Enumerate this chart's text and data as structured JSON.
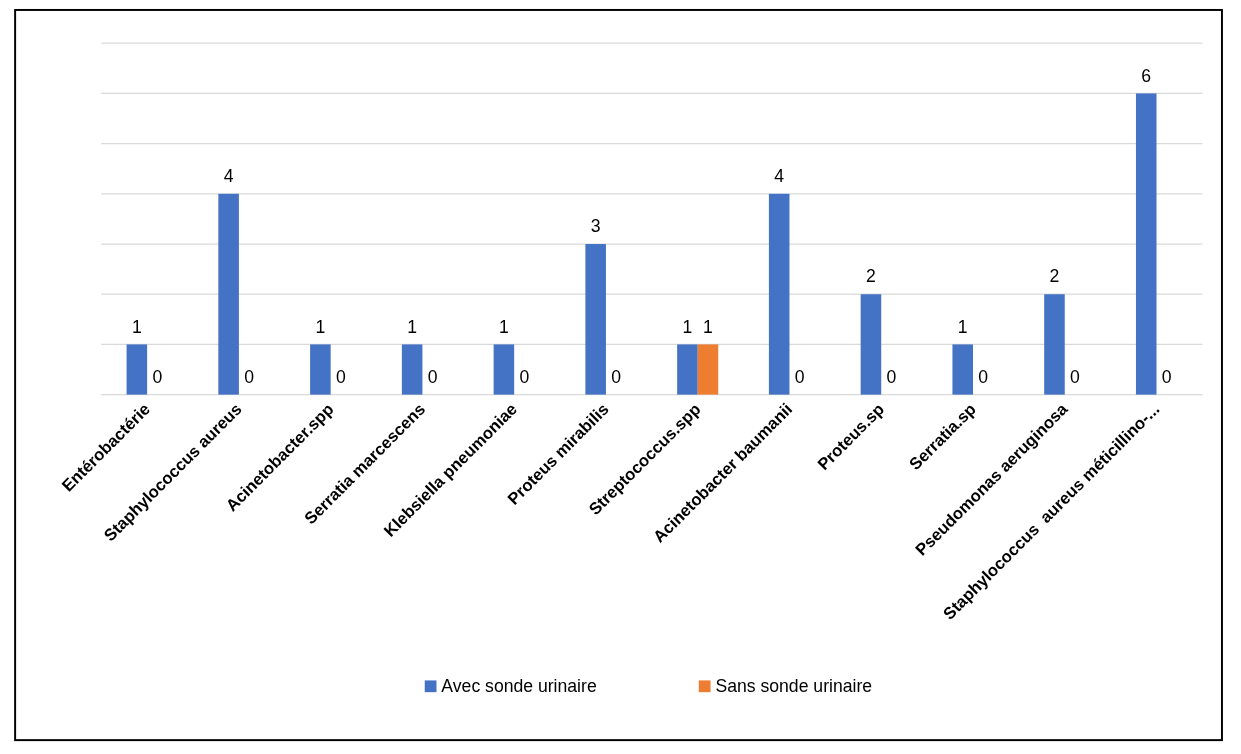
{
  "chart_data": {
    "type": "bar",
    "categories": [
      "Entérobactérie",
      "Staphylococcus aureus",
      "Acinetobacter.spp",
      "Serratia marcescens",
      "Klebsiella pneumoniae",
      "Proteus mirabilis",
      "Streptococcus.spp",
      "Acinetobacter baumanii",
      "Proteus.sp",
      "Serratia.sp",
      "Pseudomonas aeruginosa",
      "Staphylococcus  aureus méticillino-..."
    ],
    "series": [
      {
        "name": "Avec sonde urinaire",
        "color": "#4472c4",
        "values": [
          1,
          4,
          1,
          1,
          1,
          3,
          1,
          4,
          2,
          1,
          2,
          6
        ]
      },
      {
        "name": "Sans sonde urinaire",
        "color": "#ed7d31",
        "values": [
          0,
          0,
          0,
          0,
          0,
          0,
          1,
          0,
          0,
          0,
          0,
          0
        ]
      }
    ],
    "ylim": [
      0,
      7
    ],
    "yticks": [
      {
        "value": 0,
        "label": null
      },
      {
        "value": 1,
        "label": null
      },
      {
        "value": 2,
        "label": null
      },
      {
        "value": 3,
        "label": null
      },
      {
        "value": 4,
        "label": null
      },
      {
        "value": 5,
        "label": null
      },
      {
        "value": 6,
        "label": null
      },
      {
        "value": 7,
        "label": null
      }
    ],
    "grid": "y",
    "data_labels": true,
    "legend": "bottom",
    "tick_labels": "x"
  }
}
